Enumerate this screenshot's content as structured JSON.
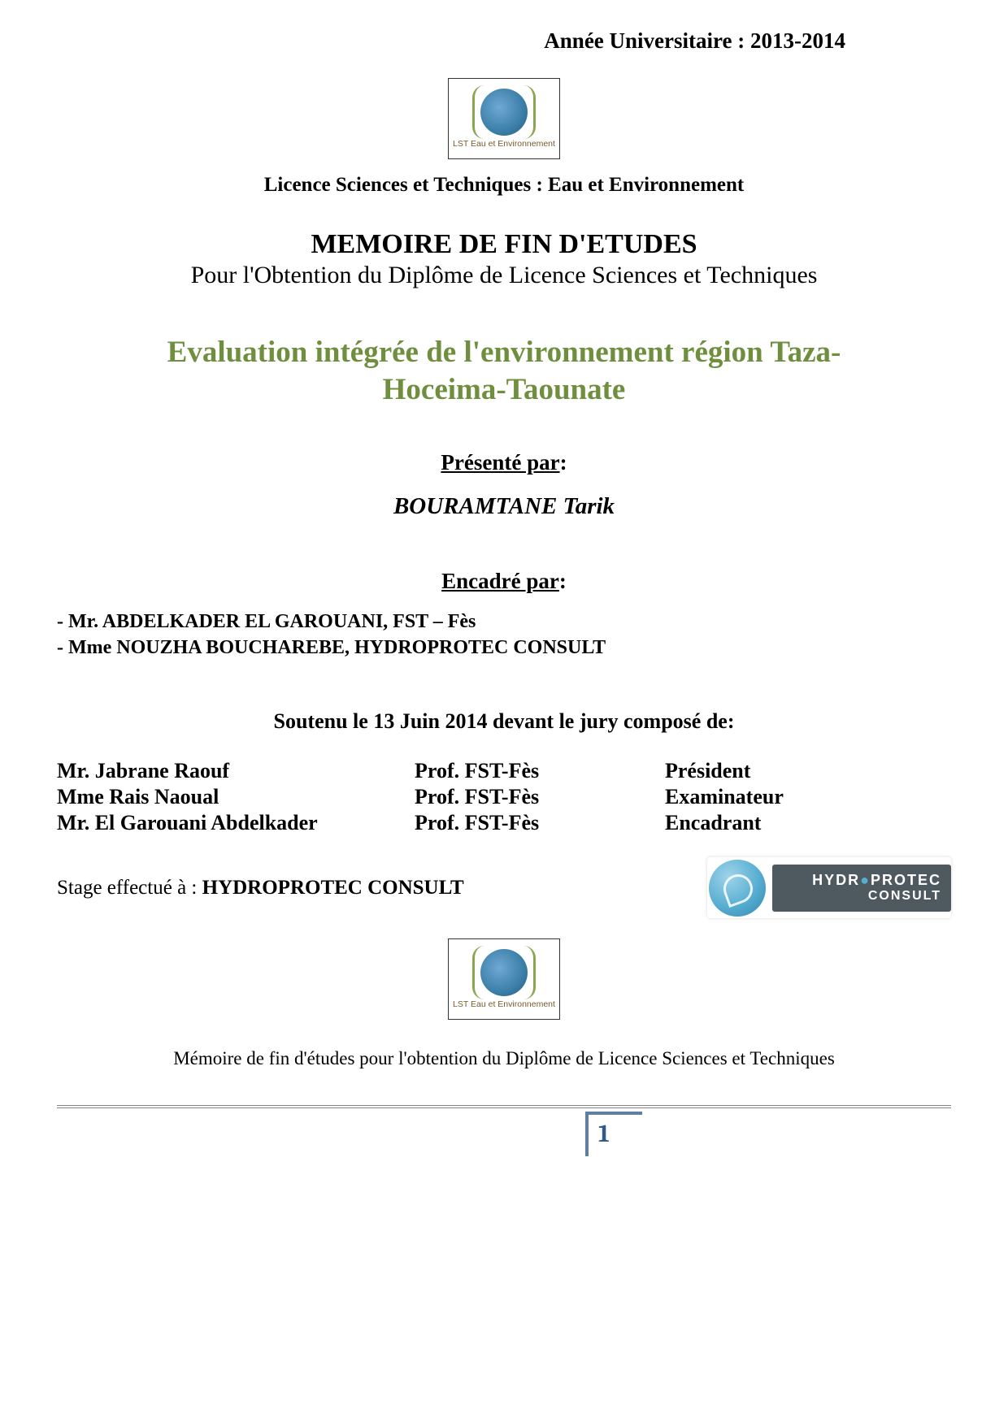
{
  "header": {
    "year_label": "Année Universitaire : 2013-2014"
  },
  "logo": {
    "caption": "LST Eau et Environnement"
  },
  "licence_line": "Licence Sciences et Techniques : Eau et Environnement",
  "memoire": {
    "title": "MEMOIRE DE FIN D'ETUDES",
    "subtitle": "Pour l'Obtention du Diplôme de Licence Sciences et Techniques"
  },
  "eval_title_line1": "Evaluation intégrée de l'environnement région Taza-",
  "eval_title_line2": "Hoceima-Taounate",
  "presente": {
    "label": "Présenté par",
    "colon": ":",
    "author": "BOURAMTANE Tarik"
  },
  "encadre": {
    "label": "Encadré par",
    "colon": ":",
    "lines": [
      "-  Mr. ABDELKADER EL GAROUANI, FST – Fès",
      "-  Mme  NOUZHA BOUCHAREBE, HYDROPROTEC CONSULT"
    ]
  },
  "soutenu": "Soutenu le  13   Juin 2014 devant le jury composé de:",
  "jury": [
    {
      "name": "Mr.  Jabrane Raouf",
      "affil": "Prof. FST-Fès",
      "role": "Président"
    },
    {
      "name": "Mme Rais Naoual",
      "affil": "Prof. FST-Fès",
      "role": "Examinateur"
    },
    {
      "name": "Mr.  El Garouani Abdelkader",
      "affil": "Prof. FST-Fès",
      "role": "Encadrant"
    }
  ],
  "stage": {
    "label": "Stage effectué à : ",
    "value": "HYDROPROTEC CONSULT"
  },
  "hydro_logo": {
    "line1_pre": "HYDR",
    "line1_drop": "●",
    "line1_post": "PROTEC",
    "line2": "CONSULT"
  },
  "footer_text": "Mémoire de fin d'études pour l'obtention du Diplôme de Licence Sciences et Techniques",
  "page_number": "1",
  "colors": {
    "title_green": "#6f8f3f",
    "page_num_blue": "#2f5b8a",
    "page_box_border": "#5e7ea3",
    "rule_gray": "#858585"
  }
}
